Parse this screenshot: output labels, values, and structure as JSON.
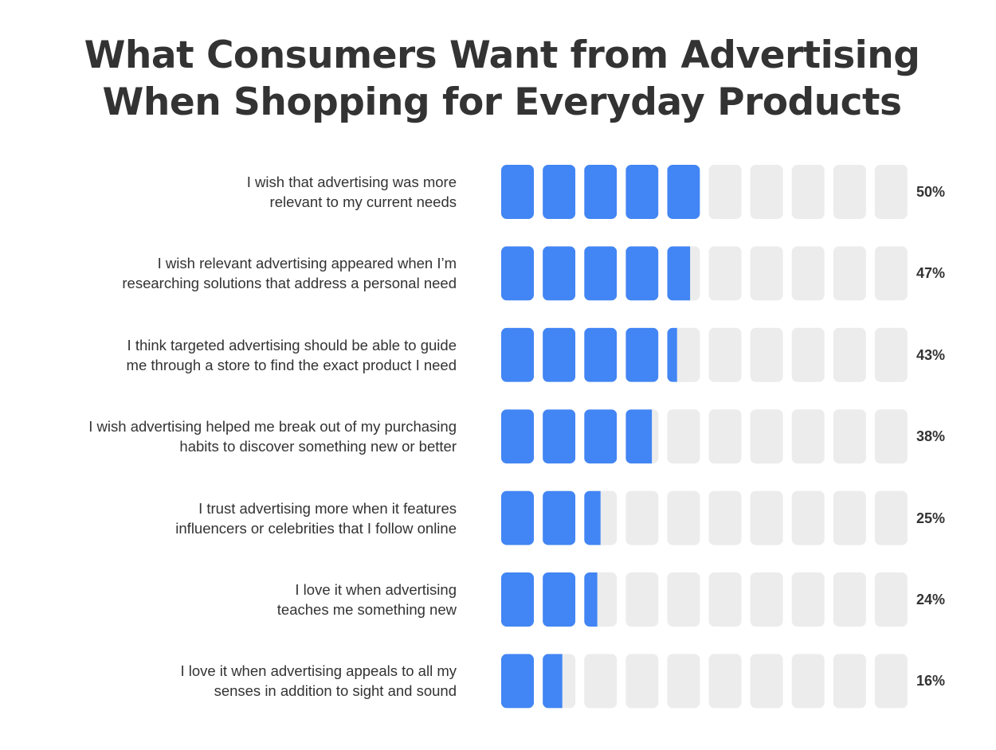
{
  "chart_data": {
    "type": "bar",
    "title": [
      "What Consumers Want from Advertising",
      "When Shopping for Everyday Products"
    ],
    "categories": [
      [
        "I wish that advertising was more",
        "relevant to my current needs"
      ],
      [
        "I wish relevant advertising appeared when I’m",
        "researching solutions that address a personal need"
      ],
      [
        "I think targeted advertising should be able to guide",
        "me through a store to find the exact product I need"
      ],
      [
        "I wish advertising helped me break out of my purchasing",
        "habits to discover something new or better"
      ],
      [
        "I trust advertising more when it features",
        "influencers or celebrities that I follow online"
      ],
      [
        "I love it when advertising",
        "teaches me something new"
      ],
      [
        "I love it when advertising appeals to all my",
        "senses in addition to sight and sound"
      ]
    ],
    "values": [
      50,
      47,
      43,
      38,
      25,
      24,
      16
    ],
    "value_labels": [
      "50%",
      "47%",
      "43%",
      "38%",
      "25%",
      "24%",
      "16%"
    ],
    "ylim": [
      0,
      100
    ],
    "units_per_block": 10,
    "colors": {
      "fill": "#4285F4",
      "empty": "#ECECEC",
      "text": "#333333"
    }
  }
}
